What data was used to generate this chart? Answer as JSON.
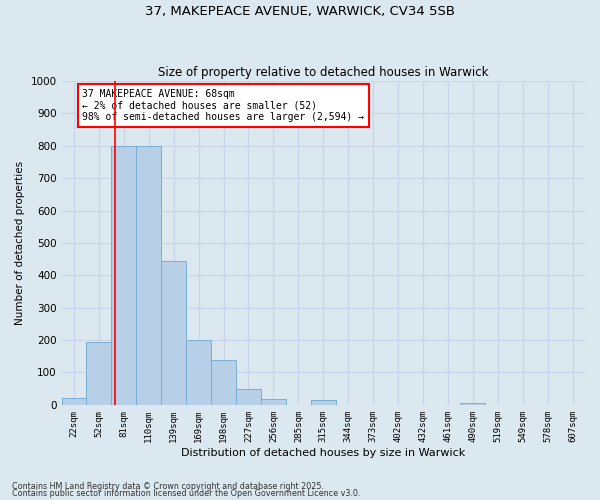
{
  "title_line1": "37, MAKEPEACE AVENUE, WARWICK, CV34 5SB",
  "title_line2": "Size of property relative to detached houses in Warwick",
  "xlabel": "Distribution of detached houses by size in Warwick",
  "ylabel": "Number of detached properties",
  "categories": [
    "22sqm",
    "52sqm",
    "81sqm",
    "110sqm",
    "139sqm",
    "169sqm",
    "198sqm",
    "227sqm",
    "256sqm",
    "285sqm",
    "315sqm",
    "344sqm",
    "373sqm",
    "402sqm",
    "432sqm",
    "461sqm",
    "490sqm",
    "519sqm",
    "549sqm",
    "578sqm",
    "607sqm"
  ],
  "values": [
    20,
    195,
    800,
    800,
    445,
    200,
    140,
    48,
    18,
    0,
    15,
    0,
    0,
    0,
    0,
    0,
    5,
    0,
    0,
    0,
    0
  ],
  "bar_color": "#b8cfe8",
  "bar_edge_color": "#7aaed4",
  "redline_x": 1.65,
  "redline_label": "37 MAKEPEACE AVENUE: 68sqm",
  "annotation_line2": "← 2% of detached houses are smaller (52)",
  "annotation_line3": "98% of semi-detached houses are larger (2,594) →",
  "annotation_box_color": "white",
  "annotation_box_edge": "red",
  "ylim": [
    0,
    1000
  ],
  "yticks": [
    0,
    100,
    200,
    300,
    400,
    500,
    600,
    700,
    800,
    900,
    1000
  ],
  "grid_color": "#c8d4e8",
  "bg_color": "#dce8f0",
  "footnote1": "Contains HM Land Registry data © Crown copyright and database right 2025.",
  "footnote2": "Contains public sector information licensed under the Open Government Licence v3.0."
}
